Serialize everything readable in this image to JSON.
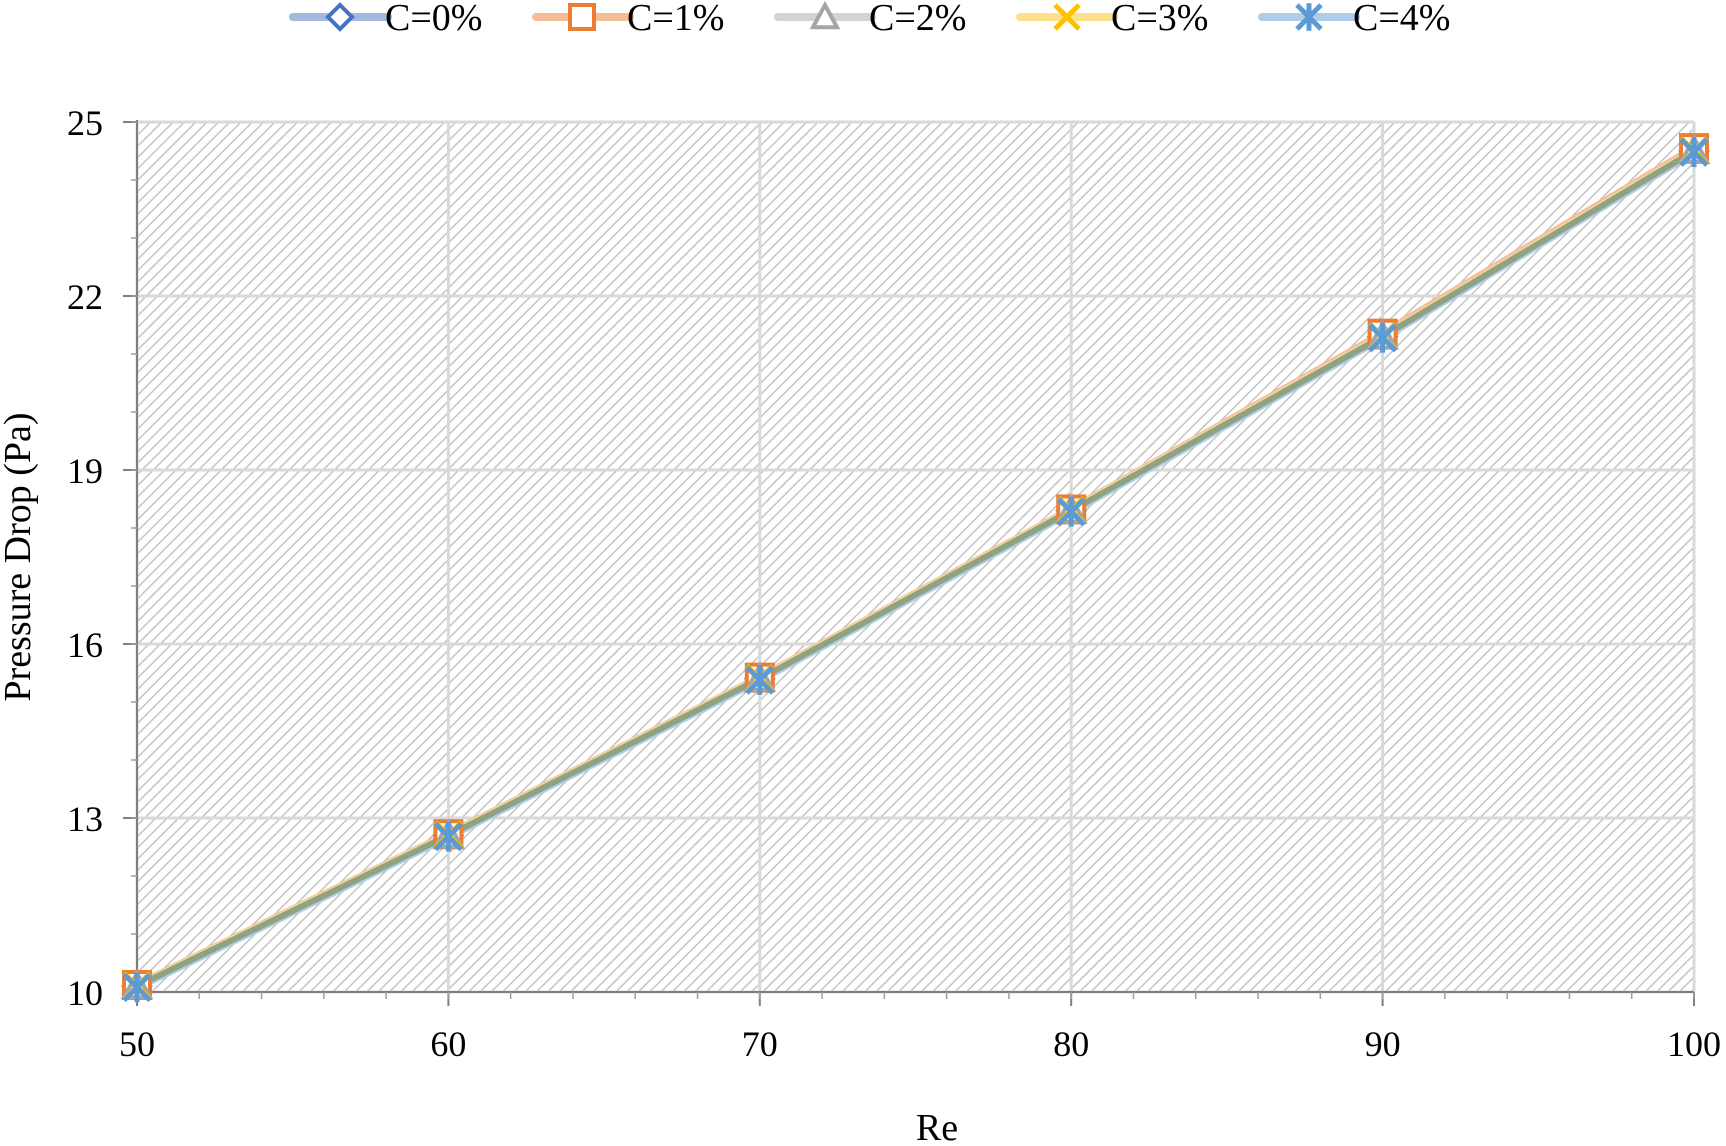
{
  "chart_data": {
    "type": "line",
    "x": [
      50,
      60,
      70,
      80,
      90,
      100
    ],
    "xlabel": "Re",
    "ylabel": "Pressure Drop (Pa)",
    "xlim": [
      50,
      100
    ],
    "ylim": [
      10,
      25
    ],
    "x_ticks": [
      "50",
      "60",
      "70",
      "80",
      "90",
      "100"
    ],
    "y_ticks": [
      "10",
      "13",
      "16",
      "19",
      "22",
      "25"
    ],
    "grid": true,
    "legend_position": "top",
    "series": [
      {
        "name": "C=0%",
        "values": [
          10.1,
          12.7,
          15.4,
          18.3,
          21.3,
          24.5
        ],
        "color": "#4472C4",
        "line_color": "#A5B8E0",
        "marker": "diamond"
      },
      {
        "name": "C=1%",
        "values": [
          10.12,
          12.72,
          15.42,
          18.32,
          21.35,
          24.55
        ],
        "color": "#ED7D31",
        "line_color": "#F6BE98",
        "marker": "square"
      },
      {
        "name": "C=2%",
        "values": [
          10.1,
          12.7,
          15.4,
          18.3,
          21.3,
          24.5
        ],
        "color": "#A5A5A5",
        "line_color": "#D3D3D3",
        "marker": "triangle"
      },
      {
        "name": "C=3%",
        "values": [
          10.1,
          12.7,
          15.4,
          18.3,
          21.3,
          24.5
        ],
        "color": "#FFC000",
        "line_color": "#FFE08A",
        "marker": "x"
      },
      {
        "name": "C=4%",
        "values": [
          10.08,
          12.68,
          15.38,
          18.28,
          21.28,
          24.48
        ],
        "color": "#5B9BD5",
        "line_color": "#AECDEA",
        "marker": "asterisk"
      }
    ],
    "overlay_line_color": "#8FA383"
  }
}
